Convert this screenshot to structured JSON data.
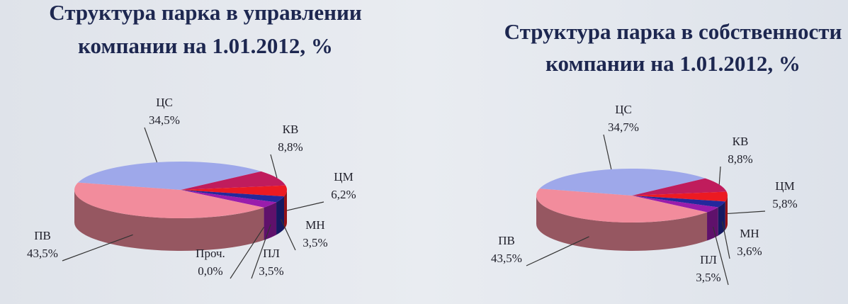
{
  "chart_data": [
    {
      "type": "pie",
      "title": [
        "Структура парка в управлении",
        "компании на 1.01.2012, %"
      ],
      "categories": [
        "ЦС",
        "КВ",
        "ЦМ",
        "МН",
        "ПЛ",
        "Проч.",
        "ПВ"
      ],
      "values": [
        34.5,
        8.8,
        6.2,
        3.5,
        3.5,
        0.0,
        43.5
      ],
      "value_labels": [
        "34,5%",
        "8,8%",
        "6,2%",
        "3,5%",
        "3,5%",
        "0,0%",
        "43,5%"
      ],
      "colors": [
        "#9ea8ea",
        "#c01c5c",
        "#ec1a22",
        "#24289c",
        "#9a1cac",
        "#e040d8",
        "#f28c9c"
      ]
    },
    {
      "type": "pie",
      "title": [
        "Структура парка в собственности",
        "компании на 1.01.2012, %"
      ],
      "categories": [
        "ЦС",
        "КВ",
        "ЦМ",
        "МН",
        "ПЛ",
        "ПВ"
      ],
      "values": [
        34.7,
        8.8,
        5.8,
        3.6,
        3.5,
        43.5
      ],
      "value_labels": [
        "34,7%",
        "8,8%",
        "5,8%",
        "3,6%",
        "3,5%",
        "43,5%"
      ],
      "colors": [
        "#9ea8ea",
        "#c01c5c",
        "#ec1a22",
        "#24289c",
        "#9a1cac",
        "#f28c9c"
      ]
    }
  ]
}
